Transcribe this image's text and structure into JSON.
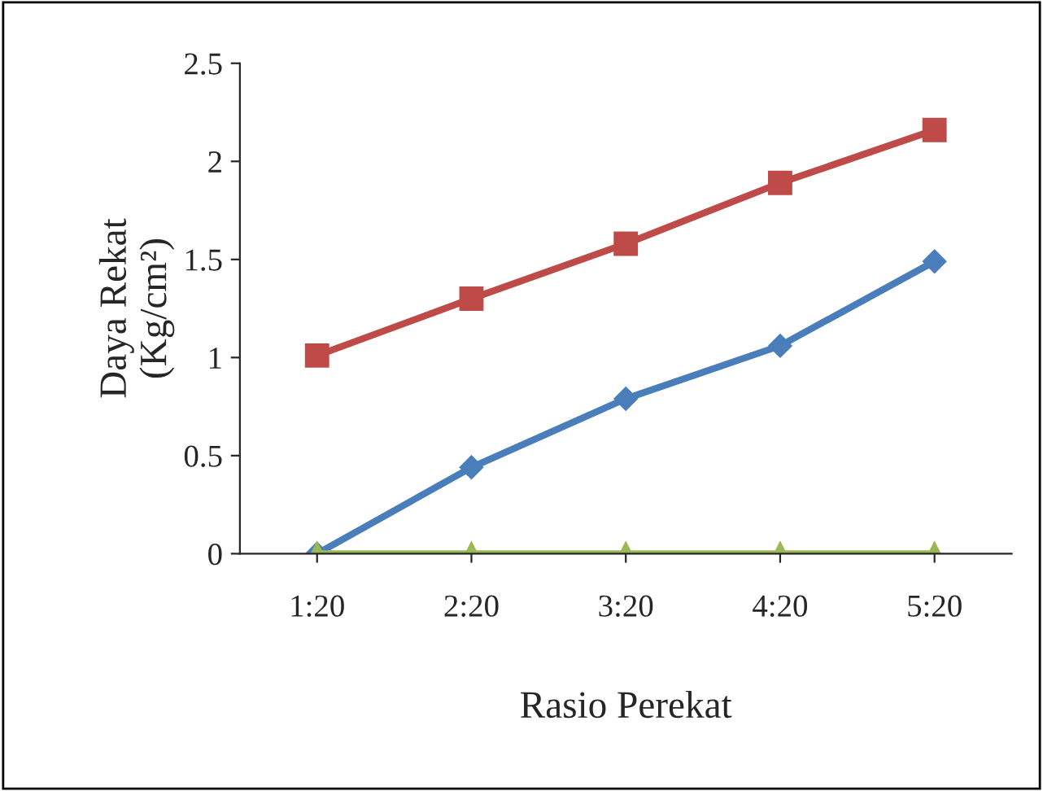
{
  "chart_data": {
    "type": "line",
    "xlabel": "Rasio Perekat",
    "ylabel": "Daya Rekat\n(Kg/cm²)",
    "categories": [
      "1:20",
      "2:20",
      "3:20",
      "4:20",
      "5:20"
    ],
    "series": [
      {
        "color": "#4a7ebb",
        "values": [
          0,
          0.44,
          0.79,
          1.06,
          1.49
        ],
        "marker": "diamond"
      },
      {
        "color": "#be4b48",
        "values": [
          1.01,
          1.3,
          1.58,
          1.89,
          2.16
        ],
        "marker": "square"
      },
      {
        "color": "#98b954",
        "values": [
          0,
          0,
          0,
          0,
          0
        ],
        "marker": "triangle"
      }
    ],
    "ylim": [
      0,
      2.5
    ],
    "yticks": [
      0,
      0.5,
      1,
      1.5,
      2,
      2.5
    ],
    "grid": false,
    "legend": false,
    "line_style": "solid"
  }
}
